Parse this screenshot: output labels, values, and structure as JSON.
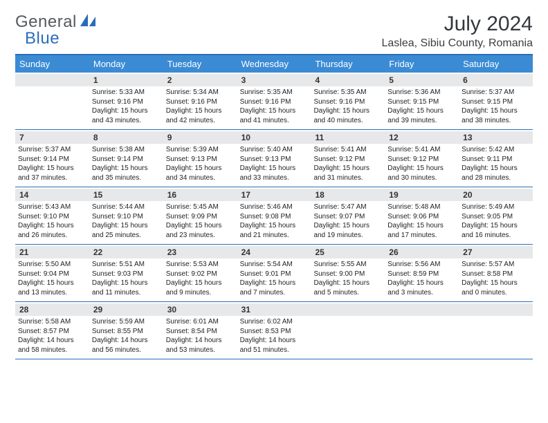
{
  "logo": {
    "text1": "General",
    "text2": "Blue"
  },
  "header": {
    "month": "July 2024",
    "location": "Laslea, Sibiu County, Romania"
  },
  "colors": {
    "accent": "#3b8bd4",
    "rule": "#2a6db8",
    "dayHeader": "#e7e8e9"
  },
  "dayNames": [
    "Sunday",
    "Monday",
    "Tuesday",
    "Wednesday",
    "Thursday",
    "Friday",
    "Saturday"
  ],
  "firstDayIndex": 1,
  "daysInMonth": 31,
  "days": {
    "1": {
      "sr": "5:33 AM",
      "ss": "9:16 PM",
      "dl": "15 hours and 43 minutes."
    },
    "2": {
      "sr": "5:34 AM",
      "ss": "9:16 PM",
      "dl": "15 hours and 42 minutes."
    },
    "3": {
      "sr": "5:35 AM",
      "ss": "9:16 PM",
      "dl": "15 hours and 41 minutes."
    },
    "4": {
      "sr": "5:35 AM",
      "ss": "9:16 PM",
      "dl": "15 hours and 40 minutes."
    },
    "5": {
      "sr": "5:36 AM",
      "ss": "9:15 PM",
      "dl": "15 hours and 39 minutes."
    },
    "6": {
      "sr": "5:37 AM",
      "ss": "9:15 PM",
      "dl": "15 hours and 38 minutes."
    },
    "7": {
      "sr": "5:37 AM",
      "ss": "9:14 PM",
      "dl": "15 hours and 37 minutes."
    },
    "8": {
      "sr": "5:38 AM",
      "ss": "9:14 PM",
      "dl": "15 hours and 35 minutes."
    },
    "9": {
      "sr": "5:39 AM",
      "ss": "9:13 PM",
      "dl": "15 hours and 34 minutes."
    },
    "10": {
      "sr": "5:40 AM",
      "ss": "9:13 PM",
      "dl": "15 hours and 33 minutes."
    },
    "11": {
      "sr": "5:41 AM",
      "ss": "9:12 PM",
      "dl": "15 hours and 31 minutes."
    },
    "12": {
      "sr": "5:41 AM",
      "ss": "9:12 PM",
      "dl": "15 hours and 30 minutes."
    },
    "13": {
      "sr": "5:42 AM",
      "ss": "9:11 PM",
      "dl": "15 hours and 28 minutes."
    },
    "14": {
      "sr": "5:43 AM",
      "ss": "9:10 PM",
      "dl": "15 hours and 26 minutes."
    },
    "15": {
      "sr": "5:44 AM",
      "ss": "9:10 PM",
      "dl": "15 hours and 25 minutes."
    },
    "16": {
      "sr": "5:45 AM",
      "ss": "9:09 PM",
      "dl": "15 hours and 23 minutes."
    },
    "17": {
      "sr": "5:46 AM",
      "ss": "9:08 PM",
      "dl": "15 hours and 21 minutes."
    },
    "18": {
      "sr": "5:47 AM",
      "ss": "9:07 PM",
      "dl": "15 hours and 19 minutes."
    },
    "19": {
      "sr": "5:48 AM",
      "ss": "9:06 PM",
      "dl": "15 hours and 17 minutes."
    },
    "20": {
      "sr": "5:49 AM",
      "ss": "9:05 PM",
      "dl": "15 hours and 16 minutes."
    },
    "21": {
      "sr": "5:50 AM",
      "ss": "9:04 PM",
      "dl": "15 hours and 13 minutes."
    },
    "22": {
      "sr": "5:51 AM",
      "ss": "9:03 PM",
      "dl": "15 hours and 11 minutes."
    },
    "23": {
      "sr": "5:53 AM",
      "ss": "9:02 PM",
      "dl": "15 hours and 9 minutes."
    },
    "24": {
      "sr": "5:54 AM",
      "ss": "9:01 PM",
      "dl": "15 hours and 7 minutes."
    },
    "25": {
      "sr": "5:55 AM",
      "ss": "9:00 PM",
      "dl": "15 hours and 5 minutes."
    },
    "26": {
      "sr": "5:56 AM",
      "ss": "8:59 PM",
      "dl": "15 hours and 3 minutes."
    },
    "27": {
      "sr": "5:57 AM",
      "ss": "8:58 PM",
      "dl": "15 hours and 0 minutes."
    },
    "28": {
      "sr": "5:58 AM",
      "ss": "8:57 PM",
      "dl": "14 hours and 58 minutes."
    },
    "29": {
      "sr": "5:59 AM",
      "ss": "8:55 PM",
      "dl": "14 hours and 56 minutes."
    },
    "30": {
      "sr": "6:01 AM",
      "ss": "8:54 PM",
      "dl": "14 hours and 53 minutes."
    },
    "31": {
      "sr": "6:02 AM",
      "ss": "8:53 PM",
      "dl": "14 hours and 51 minutes."
    }
  },
  "labels": {
    "sunrise": "Sunrise:",
    "sunset": "Sunset:",
    "daylight": "Daylight:"
  }
}
